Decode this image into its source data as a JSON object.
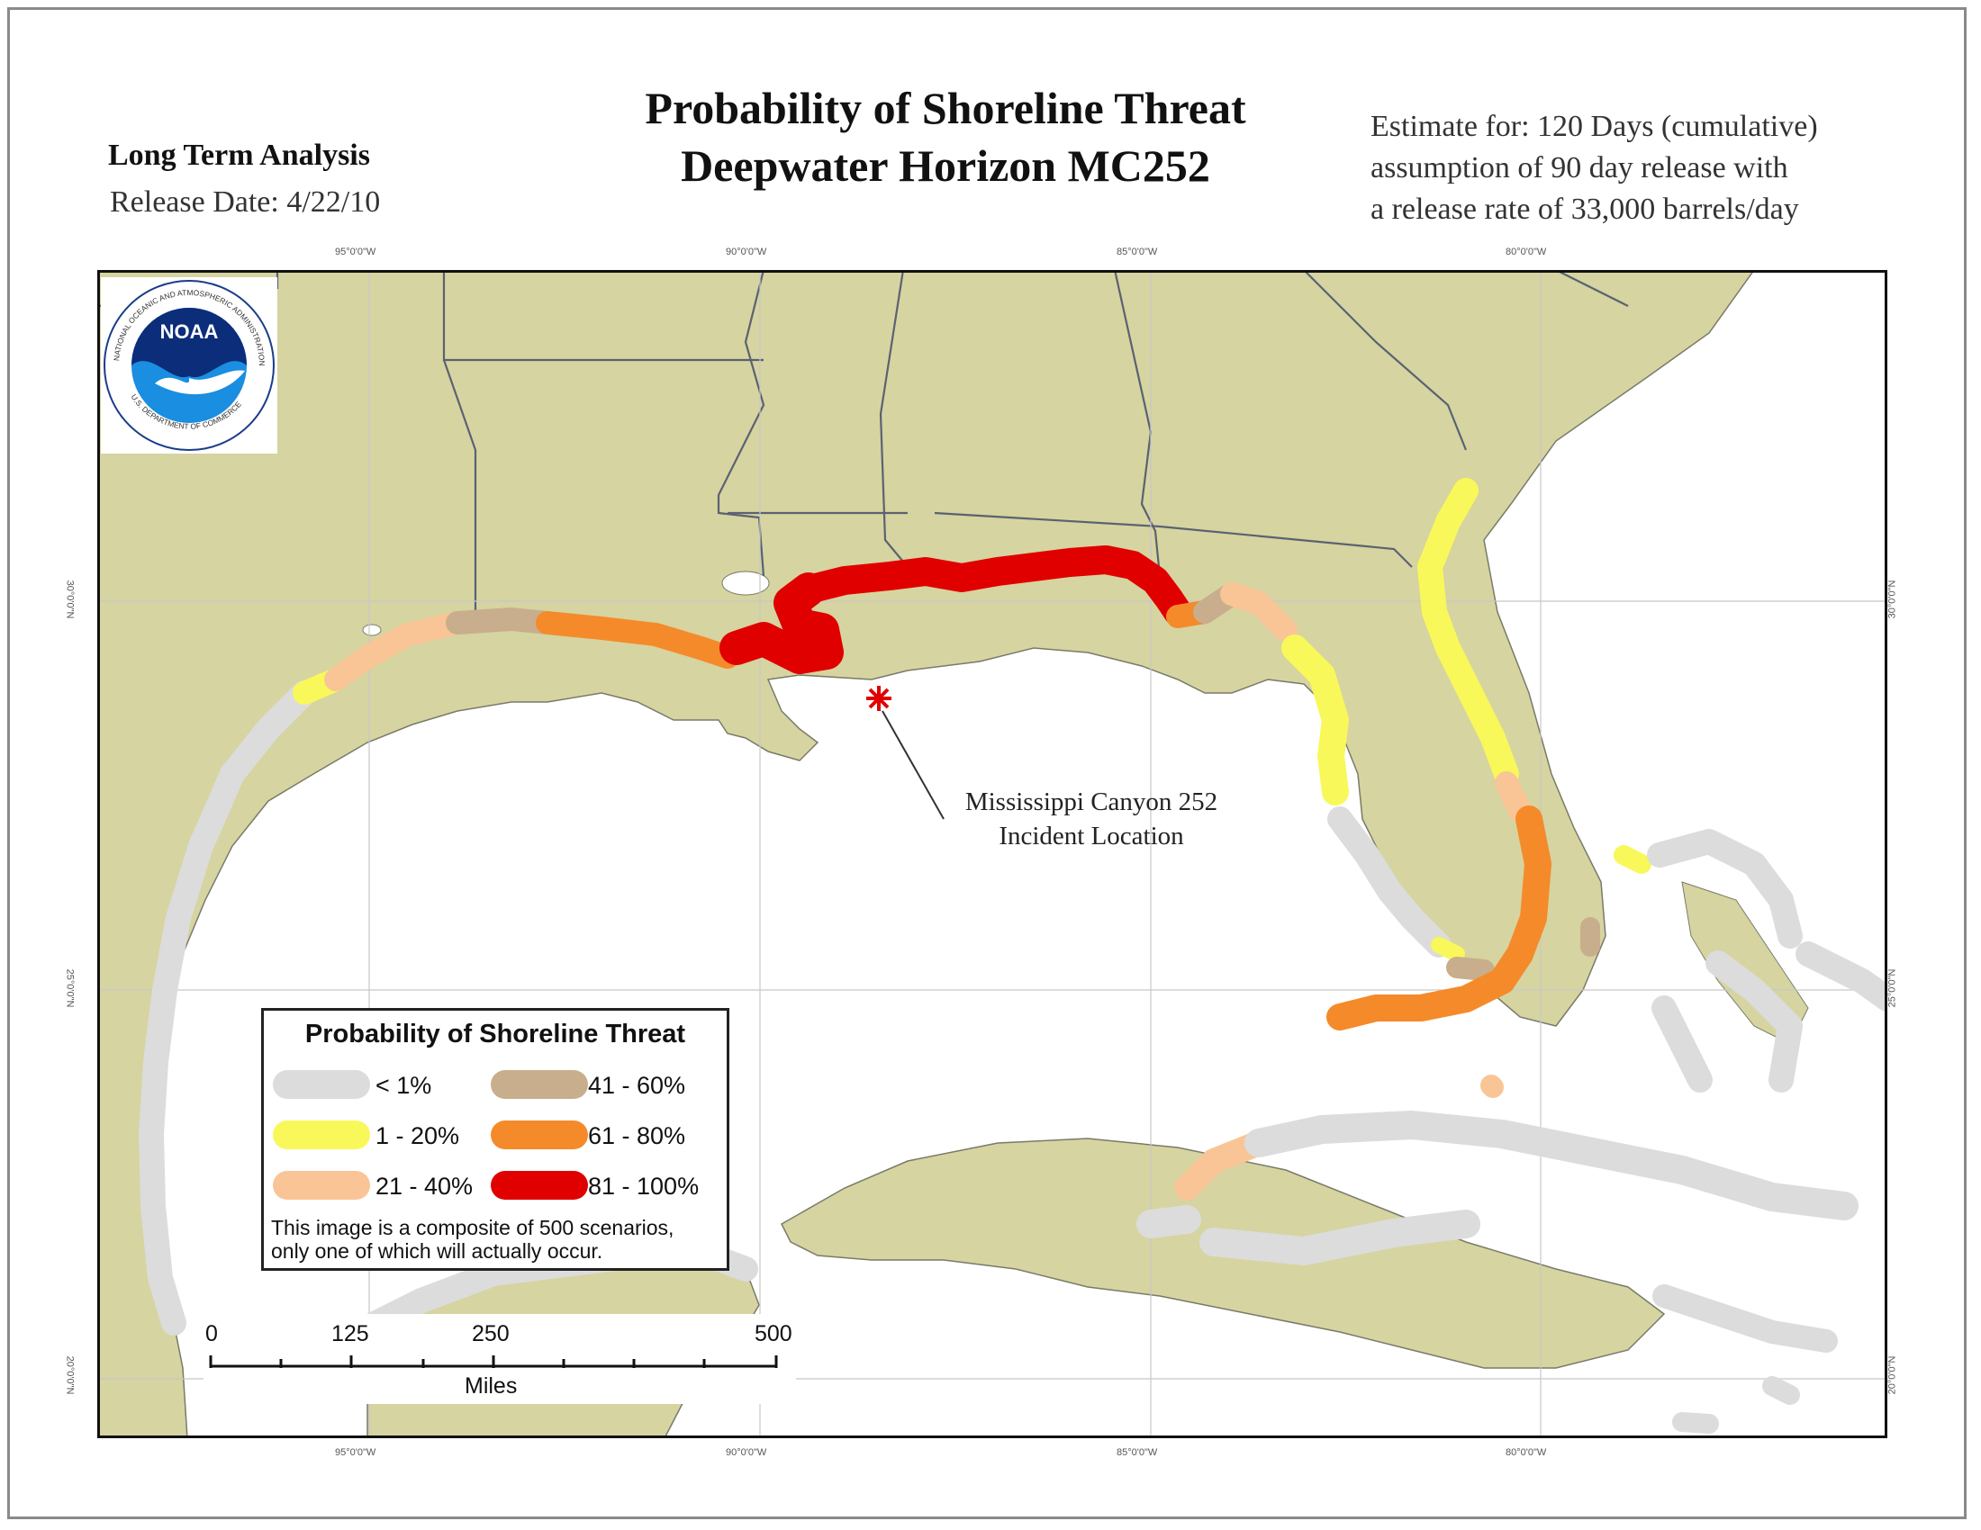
{
  "header": {
    "title_line1": "Probability of Shoreline Threat",
    "title_line2": "Deepwater Horizon MC252",
    "analysis_label": "Long Term Analysis",
    "release_date": "Release Date:  4/22/10",
    "estimate_line1": "Estimate for: 120 Days (cumulative)",
    "estimate_line2": "assumption of 90 day release with",
    "estimate_line3": "a release rate of 33,000 barrels/day"
  },
  "logo": {
    "name": "NOAA",
    "ring_text": "NATIONAL OCEANIC AND ATMOSPHERIC ADMINISTRATION",
    "bottom_text": "U.S. DEPARTMENT OF COMMERCE"
  },
  "map": {
    "longitude_labels": [
      "95°0'0\"W",
      "90°0'0\"W",
      "85°0'0\"W",
      "80°0'0\"W"
    ],
    "latitude_labels": [
      "30°0'0\"N",
      "25°0'0\"N",
      "20°0'0\"N"
    ],
    "incident_line1": "Mississippi Canyon 252",
    "incident_line2": "Incident Location",
    "colors": {
      "land": "#d6d4a0",
      "water": "#ffffff",
      "border": "#5a6272",
      "grid": "#c8c8c8"
    }
  },
  "legend": {
    "title": "Probability of Shoreline Threat",
    "items": [
      {
        "label": "< 1%",
        "color": "#dcdcdc"
      },
      {
        "label": "1 - 20%",
        "color": "#f8f85a"
      },
      {
        "label": "21 - 40%",
        "color": "#f9c596"
      },
      {
        "label": "41 - 60%",
        "color": "#c8ae8c"
      },
      {
        "label": "61 - 80%",
        "color": "#f58a2a"
      },
      {
        "label": "81 - 100%",
        "color": "#e00000"
      }
    ],
    "note_line1": "This image is a composite of 500 scenarios,",
    "note_line2": "only one of which will actually occur."
  },
  "scale": {
    "ticks": [
      "0",
      "125",
      "250",
      "500"
    ],
    "unit": "Miles"
  }
}
